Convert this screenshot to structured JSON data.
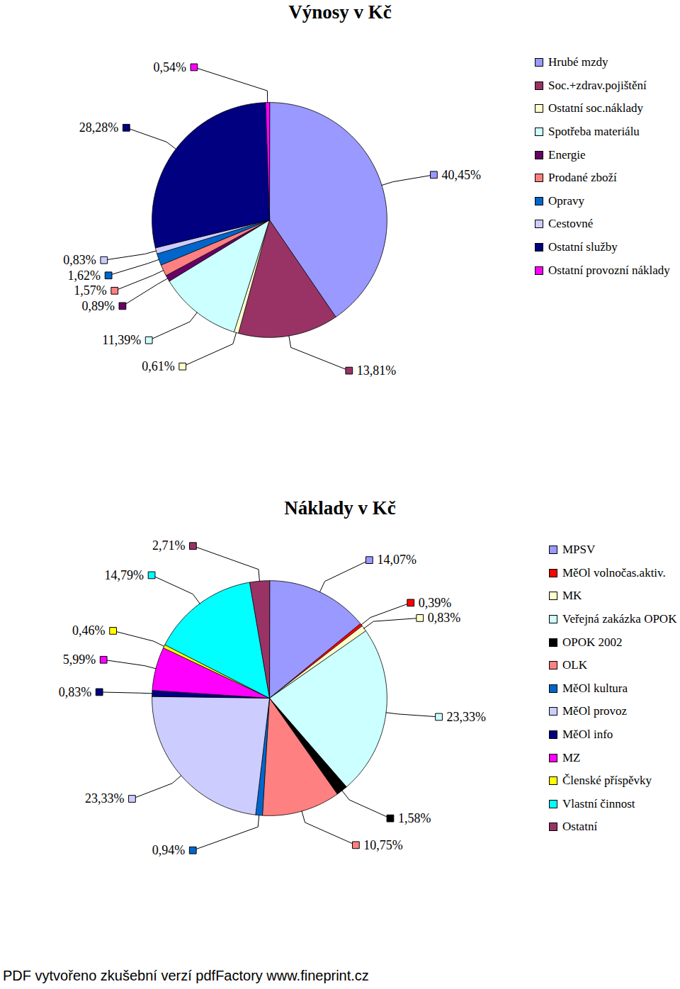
{
  "chart_data": [
    {
      "type": "pie",
      "title": "Výnosy v Kč",
      "categories": [
        "Hrubé mzdy",
        "Soc.+zdrav.pojištění",
        "Ostatní soc.náklady",
        "Spotřeba materiálu",
        "Energie",
        "Prodané zboží",
        "Opravy",
        "Cestovné",
        "Ostatní služby",
        "Ostatní provozní náklady"
      ],
      "values": [
        40.45,
        13.81,
        0.61,
        11.39,
        0.89,
        1.57,
        1.62,
        0.83,
        28.28,
        0.54
      ],
      "value_labels": [
        "40,45%",
        "13,81%",
        "0,61%",
        "11,39%",
        "0,89%",
        "1,57%",
        "1,62%",
        "0,83%",
        "28,28%",
        "0,54%"
      ],
      "colors": [
        "#9999ff",
        "#993366",
        "#ffffcc",
        "#ccffff",
        "#660066",
        "#ff8080",
        "#0066cc",
        "#ccccff",
        "#000080",
        "#ff00ff"
      ],
      "data_labels": true,
      "legend": "right"
    },
    {
      "type": "pie",
      "title": "Náklady v Kč",
      "categories": [
        "MPSV",
        "MěOl volnočas.aktiv.",
        "MK",
        "Veřejná zakázka OPOK",
        "OPOK 2002",
        "OLK",
        "MěOl kultura",
        "MěOl provoz",
        "MěOl info",
        "MZ",
        "Členské příspěvky",
        "Vlastní činnost",
        "Ostatní"
      ],
      "values": [
        14.07,
        0.39,
        0.83,
        23.33,
        1.58,
        10.75,
        0.94,
        23.33,
        0.83,
        5.99,
        0.46,
        14.79,
        2.71
      ],
      "value_labels": [
        "14,07%",
        "0,39%",
        "0,83%",
        "23,33%",
        "1,58%",
        "10,75%",
        "0,94%",
        "23,33%",
        "0,83%",
        "5,99%",
        "0,46%",
        "14,79%",
        "2,71%"
      ],
      "colors": [
        "#9999ff",
        "#ff0000",
        "#ffffcc",
        "#ccffff",
        "#000000",
        "#ff8080",
        "#0066cc",
        "#ccccff",
        "#000080",
        "#ff00ff",
        "#ffff00",
        "#00ffff",
        "#993366"
      ],
      "data_labels": true,
      "legend": "right"
    }
  ],
  "footer": "PDF vytvořeno zkušební verzí pdfFactory www.fineprint.cz"
}
